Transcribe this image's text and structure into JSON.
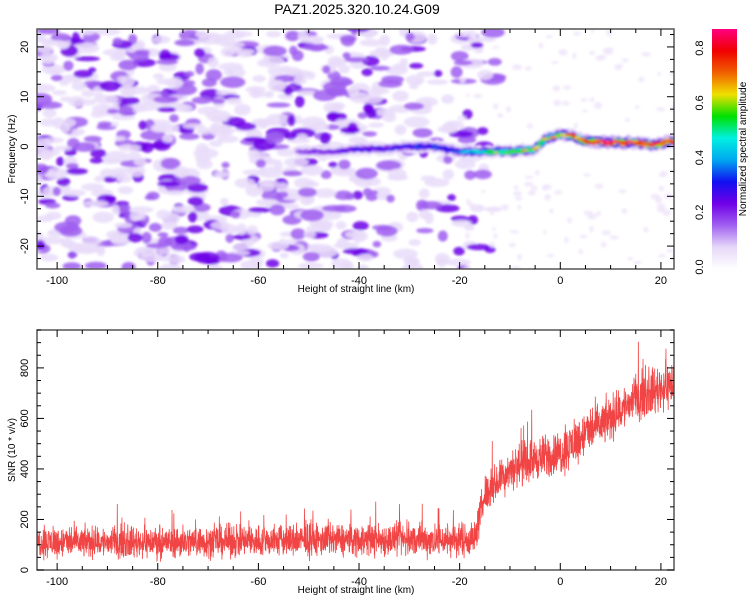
{
  "chart_data": [
    {
      "type": "heatmap",
      "title": "PAZ1.2025.320.10.24.G09",
      "xlabel": "Height of straight line (km)",
      "ylabel": "Frequency (Hz)",
      "xlim": [
        -104,
        22.6
      ],
      "ylim": [
        -24.6,
        23.6
      ],
      "xticks": [
        -100,
        -80,
        -60,
        -40,
        -20,
        0,
        20
      ],
      "xtick_labels": [
        "-100",
        "-80",
        "-60",
        "-40",
        "-20",
        "0",
        "20"
      ],
      "yticks": [
        -20,
        -10,
        0,
        10,
        20
      ],
      "ytick_labels": [
        "-20",
        "-10",
        "0",
        "10",
        "20"
      ],
      "colorbar": {
        "label": "Normalized spectral amplitude",
        "range": [
          0.0,
          0.87
        ],
        "ticks": [
          0.0,
          0.2,
          0.4,
          0.6,
          0.8
        ],
        "tick_labels": [
          "0.0",
          "0.2",
          "0.4",
          "0.6",
          "0.8"
        ],
        "colormap": [
          "#ffffff",
          "#e6d8f8",
          "#a060f0",
          "#7000e8",
          "#1010f0",
          "#00a8f0",
          "#00f0e0",
          "#00e000",
          "#f0e000",
          "#f06000",
          "#f00000",
          "#ff0080"
        ]
      },
      "signal_track": {
        "description": "Narrow-band signal near 0 Hz from about -52 km to the right edge, amplitude rising with height",
        "points": [
          {
            "x": -52,
            "freq": -1.0,
            "amp": 0.18
          },
          {
            "x": -45,
            "freq": -1.0,
            "amp": 0.22
          },
          {
            "x": -40,
            "freq": -0.5,
            "amp": 0.25
          },
          {
            "x": -35,
            "freq": -0.5,
            "amp": 0.27
          },
          {
            "x": -30,
            "freq": 0.0,
            "amp": 0.3
          },
          {
            "x": -25,
            "freq": 0.0,
            "amp": 0.32
          },
          {
            "x": -20,
            "freq": -1.0,
            "amp": 0.35
          },
          {
            "x": -15,
            "freq": -1.0,
            "amp": 0.5
          },
          {
            "x": -10,
            "freq": -1.0,
            "amp": 0.6
          },
          {
            "x": -5,
            "freq": -0.5,
            "amp": 0.65
          },
          {
            "x": -3,
            "freq": 1.5,
            "amp": 0.6
          },
          {
            "x": 0,
            "freq": 2.5,
            "amp": 0.65
          },
          {
            "x": 3,
            "freq": 2.0,
            "amp": 0.7
          },
          {
            "x": 5,
            "freq": 1.0,
            "amp": 0.8
          },
          {
            "x": 10,
            "freq": 0.8,
            "amp": 0.85
          },
          {
            "x": 15,
            "freq": 0.8,
            "amp": 0.82
          },
          {
            "x": 18,
            "freq": 0.3,
            "amp": 0.75
          },
          {
            "x": 22,
            "freq": 1.0,
            "amp": 0.8
          }
        ],
        "background_noise_extent_km": [
          -104,
          -17
        ]
      }
    },
    {
      "type": "line",
      "title": "",
      "xlabel": "Height of straight line (km)",
      "ylabel": "SNR (10 * v/v)",
      "xlim": [
        -104,
        22.6
      ],
      "ylim": [
        0,
        950
      ],
      "xticks": [
        -100,
        -80,
        -60,
        -40,
        -20,
        0,
        20
      ],
      "xtick_labels": [
        "-100",
        "-80",
        "-60",
        "-40",
        "-20",
        "0",
        "20"
      ],
      "yticks": [
        0,
        200,
        400,
        600,
        800
      ],
      "ytick_labels": [
        "0",
        "200",
        "400",
        "600",
        "800"
      ],
      "series": [
        {
          "name": "SNR",
          "color": "#f03030",
          "trend": [
            {
              "x": -104,
              "mean": 110,
              "spread": 90
            },
            {
              "x": -80,
              "mean": 110,
              "spread": 90
            },
            {
              "x": -60,
              "mean": 115,
              "spread": 95
            },
            {
              "x": -40,
              "mean": 120,
              "spread": 95
            },
            {
              "x": -20,
              "mean": 120,
              "spread": 100
            },
            {
              "x": -17,
              "mean": 125,
              "spread": 100
            },
            {
              "x": -15,
              "mean": 300,
              "spread": 110
            },
            {
              "x": -10,
              "mean": 400,
              "spread": 120
            },
            {
              "x": -5,
              "mean": 440,
              "spread": 120
            },
            {
              "x": 0,
              "mean": 460,
              "spread": 130
            },
            {
              "x": 5,
              "mean": 540,
              "spread": 130
            },
            {
              "x": 10,
              "mean": 600,
              "spread": 130
            },
            {
              "x": 15,
              "mean": 680,
              "spread": 130
            },
            {
              "x": 22.6,
              "mean": 740,
              "spread": 140
            }
          ],
          "peak_max": 940
        }
      ]
    }
  ]
}
